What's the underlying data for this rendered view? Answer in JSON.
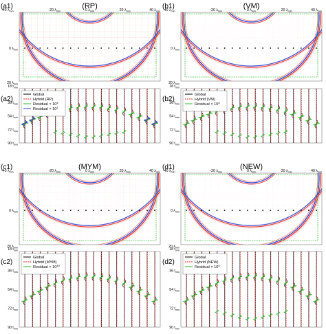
{
  "chart_data": {
    "type": "composite",
    "x_ticks": [
      "-40 λ_min",
      "-20 λ_min",
      "0 λ_min",
      "20 λ_min",
      "40 λ_min"
    ],
    "y_ticks_snapshot": [
      "0 λ_min",
      "20 λ_min"
    ],
    "y_ticks_trace": [
      "18 t_min",
      "36 t_min",
      "54 t_min",
      "72 t_min",
      "90 t_min"
    ],
    "colors": {
      "wave_red": "#e0201c",
      "wave_blue": "#1a33cc",
      "global": "#000000",
      "hybrid": "#e0201c",
      "residual": "#2bbf2b",
      "residual_alt": "#3a3acc",
      "boundary": "#2bbf2b"
    },
    "panels": [
      {
        "id": "RP",
        "label_snapshot": "(a1)",
        "label_trace": "(a2)",
        "title": "(RP)",
        "legend": [
          "Global",
          "Hybrid (RP)",
          "Residual × 10^4",
          "Residual × 10^1"
        ],
        "residual_scales": [
          4,
          1
        ],
        "traces": 18,
        "snapshot_artifacts": "strong"
      },
      {
        "id": "VM",
        "label_snapshot": "(b1)",
        "label_trace": "(b2)",
        "title": "(VM)",
        "legend": [
          "Global",
          "Hybrid (VM)",
          "Residual × 10^4"
        ],
        "residual_scales": [
          4
        ],
        "traces": 18,
        "snapshot_artifacts": "weak"
      },
      {
        "id": "MYM",
        "label_snapshot": "(c1)",
        "label_trace": "(c2)",
        "title": "(MYM)",
        "legend": [
          "Global",
          "Hybrid (MYM)",
          "Residual × 10^40"
        ],
        "residual_scales": [
          40
        ],
        "traces": 18,
        "snapshot_artifacts": "medium"
      },
      {
        "id": "NEW",
        "label_snapshot": "(d1)",
        "label_trace": "(d2)",
        "title": "(NEW)",
        "legend": [
          "Global",
          "Hybrid (NEW)",
          "Residual × 10^4"
        ],
        "residual_scales": [
          4
        ],
        "traces": 18,
        "snapshot_artifacts": "weak"
      }
    ],
    "grid": true
  }
}
